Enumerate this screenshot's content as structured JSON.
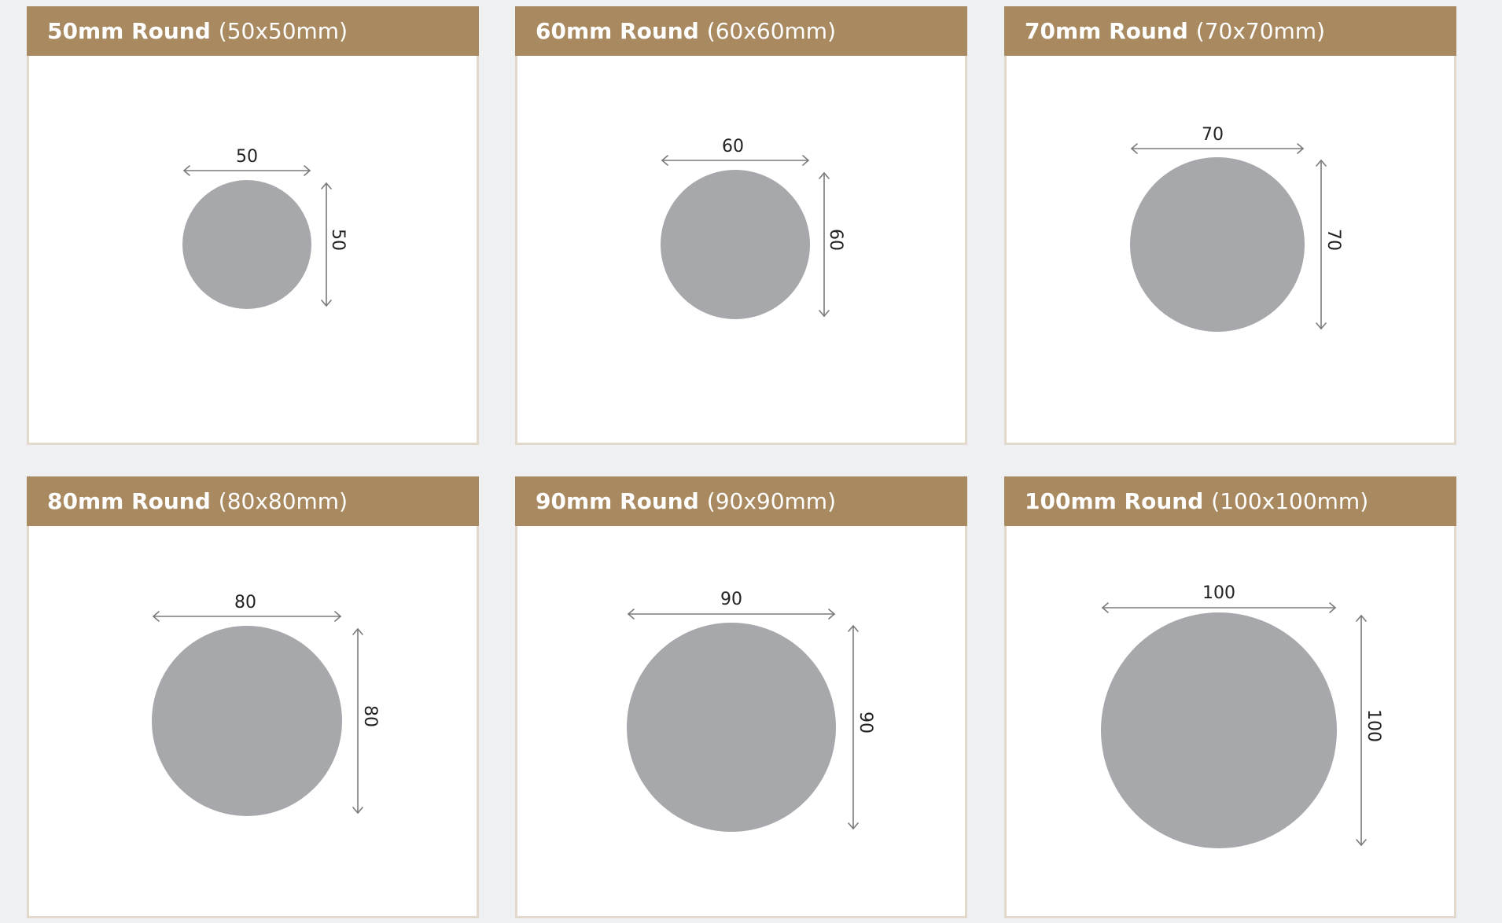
{
  "colors": {
    "header_bg": "#a98960",
    "header_text": "#ffffff",
    "shape_fill": "#a7a8ab",
    "arrow": "#7a7a7a",
    "card_border": "#e3d8cc",
    "page_bg": "#eef0f2"
  },
  "sizes": [
    {
      "name": "50mm Round",
      "dims": "(50x50mm)",
      "width_label": "50",
      "height_label": "50",
      "diameter_mm": 50
    },
    {
      "name": "60mm Round",
      "dims": "(60x60mm)",
      "width_label": "60",
      "height_label": "60",
      "diameter_mm": 60
    },
    {
      "name": "70mm Round",
      "dims": "(70x70mm)",
      "width_label": "70",
      "height_label": "70",
      "diameter_mm": 70
    },
    {
      "name": "80mm Round",
      "dims": "(80x80mm)",
      "width_label": "80",
      "height_label": "80",
      "diameter_mm": 80
    },
    {
      "name": "90mm Round",
      "dims": "(90x90mm)",
      "width_label": "90",
      "height_label": "90",
      "diameter_mm": 90
    },
    {
      "name": "100mm Round",
      "dims": "(100x100mm)",
      "width_label": "100",
      "height_label": "100",
      "diameter_mm": 100
    }
  ]
}
